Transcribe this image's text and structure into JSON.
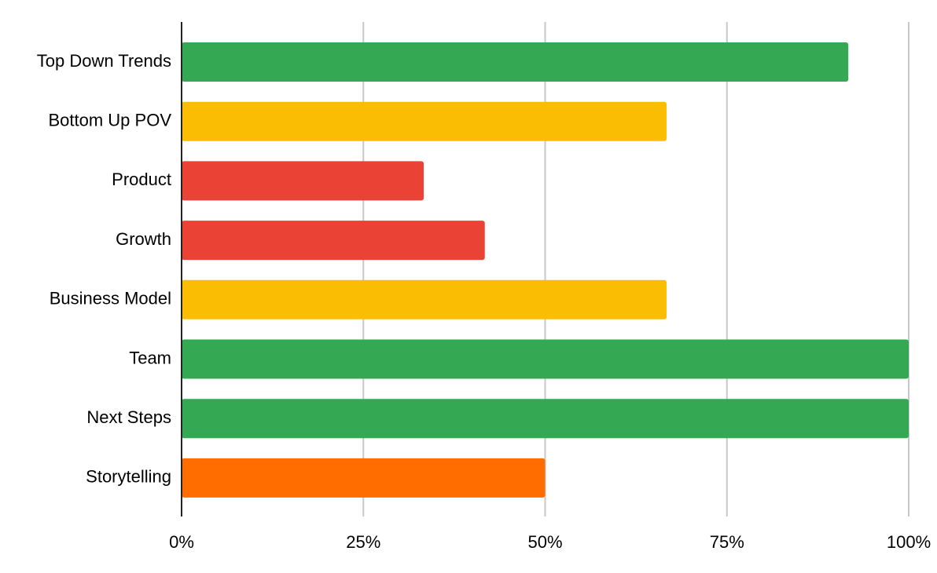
{
  "chart_data": {
    "type": "bar",
    "orientation": "horizontal",
    "title": "",
    "xlabel": "",
    "ylabel": "",
    "categories": [
      "Top Down Trends",
      "Bottom Up POV",
      "Product",
      "Growth",
      "Business Model",
      "Team",
      "Next Steps",
      "Storytelling"
    ],
    "values": [
      91.7,
      66.7,
      33.3,
      41.7,
      66.7,
      100,
      100,
      50
    ],
    "bar_colors": [
      "#34a853",
      "#fbbc04",
      "#ea4335",
      "#ea4335",
      "#fbbc04",
      "#34a853",
      "#34a853",
      "#ff6d01"
    ],
    "xlim": [
      0,
      100
    ],
    "x_ticks": [
      0,
      25,
      50,
      75,
      100
    ],
    "x_tick_labels": [
      "0%",
      "25%",
      "50%",
      "75%",
      "100%"
    ],
    "grid": "vertical",
    "legend": "none"
  }
}
